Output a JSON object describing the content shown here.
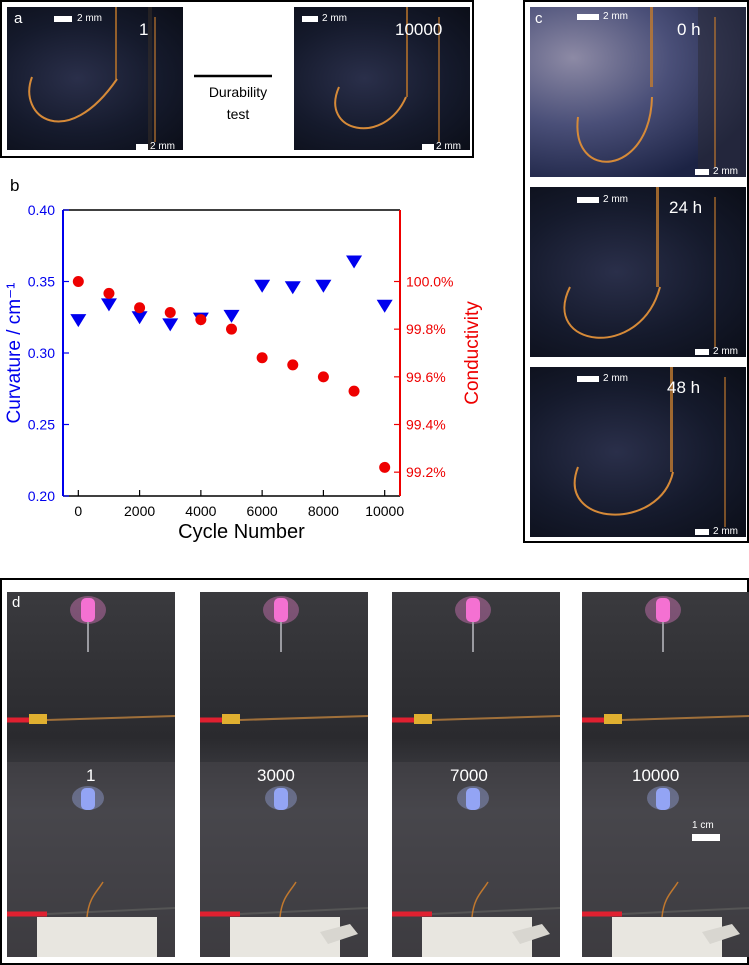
{
  "panel_a": {
    "label": "a",
    "left_count": "1",
    "right_count": "10000",
    "scale_label": "2 mm",
    "arrow_text_line1": "Durability",
    "arrow_text_line2": "test"
  },
  "panel_b": {
    "label": "b"
  },
  "panel_c": {
    "label": "c",
    "scale_label": "2 mm",
    "times": [
      "0 h",
      "24 h",
      "48 h"
    ]
  },
  "panel_d": {
    "label": "d",
    "cycles": [
      "1",
      "3000",
      "7000",
      "10000"
    ],
    "scale_label": "1 cm"
  },
  "chart_data": {
    "type": "scatter",
    "xlabel": "Cycle Number",
    "ylabel_left": "Curvature / cm⁻¹",
    "ylabel_right": "Conductivity",
    "xlim": [
      -500,
      10500
    ],
    "ylim_left": [
      0.2,
      0.4
    ],
    "ylim_right": [
      99.1,
      100.3
    ],
    "x_ticks": [
      0,
      2000,
      4000,
      6000,
      8000,
      10000
    ],
    "y_left_ticks": [
      "0.20",
      "0.25",
      "0.30",
      "0.35",
      "0.40"
    ],
    "y_right_ticks": [
      "99.2%",
      "99.4%",
      "99.6%",
      "99.8%",
      "100.0%"
    ],
    "y_right_tick_values": [
      99.2,
      99.4,
      99.6,
      99.8,
      100.0
    ],
    "series": [
      {
        "name": "Curvature",
        "axis": "left",
        "color": "#0000ee",
        "marker": "triangle-down",
        "x": [
          0,
          1000,
          2000,
          3000,
          4000,
          5000,
          6000,
          7000,
          8000,
          9000,
          10000
        ],
        "values": [
          0.323,
          0.334,
          0.325,
          0.32,
          0.324,
          0.326,
          0.347,
          0.346,
          0.347,
          0.364,
          0.333
        ]
      },
      {
        "name": "Conductivity",
        "axis": "right",
        "color": "#ee0000",
        "marker": "circle",
        "x": [
          0,
          1000,
          2000,
          3000,
          4000,
          5000,
          6000,
          7000,
          8000,
          9000,
          10000
        ],
        "values": [
          100.0,
          99.95,
          99.89,
          99.87,
          99.84,
          99.8,
          99.68,
          99.65,
          99.6,
          99.54,
          99.22
        ]
      }
    ]
  }
}
